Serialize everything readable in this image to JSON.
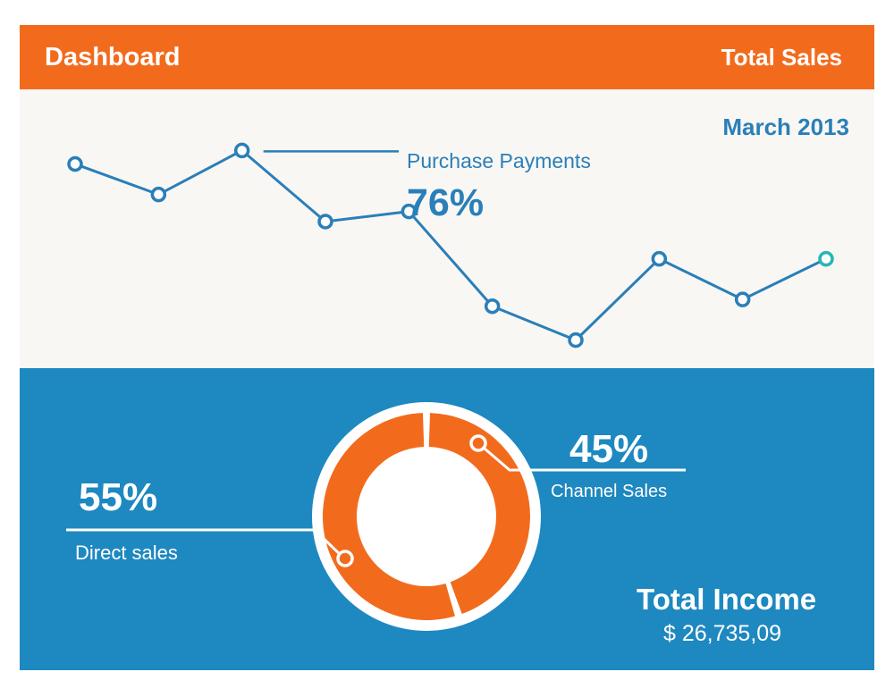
{
  "colors": {
    "accent_orange": "#f26b1d",
    "accent_blue": "#1e88c0",
    "line_blue": "#2a7fb8",
    "highlight_teal": "#27b5b5",
    "panel_light": "#f9f7f4"
  },
  "header": {
    "title": "Dashboard",
    "subtitle": "Total Sales"
  },
  "line_section": {
    "period": "March 2013",
    "metric_label": "Purchase Payments",
    "metric_value": "76%"
  },
  "pie_section": {
    "direct_pct": "55%",
    "direct_label": "Direct sales",
    "channel_pct": "45%",
    "channel_label": "Channel Sales",
    "income_title": "Total Income",
    "income_value": "$ 26,735,09"
  },
  "chart_data": [
    {
      "type": "line",
      "title": "",
      "x": [
        1,
        2,
        3,
        4,
        5,
        6,
        7,
        8,
        9,
        10
      ],
      "series": [
        {
          "values": [
            74,
            65,
            78,
            57,
            60,
            32,
            22,
            46,
            34,
            46
          ]
        }
      ],
      "ylim": [
        0,
        100
      ],
      "grid": false,
      "highlight_last_point": true
    },
    {
      "type": "pie",
      "style": "donut",
      "slices": [
        {
          "label": "Direct sales",
          "value": 55
        },
        {
          "label": "Channel Sales",
          "value": 45
        }
      ]
    }
  ]
}
